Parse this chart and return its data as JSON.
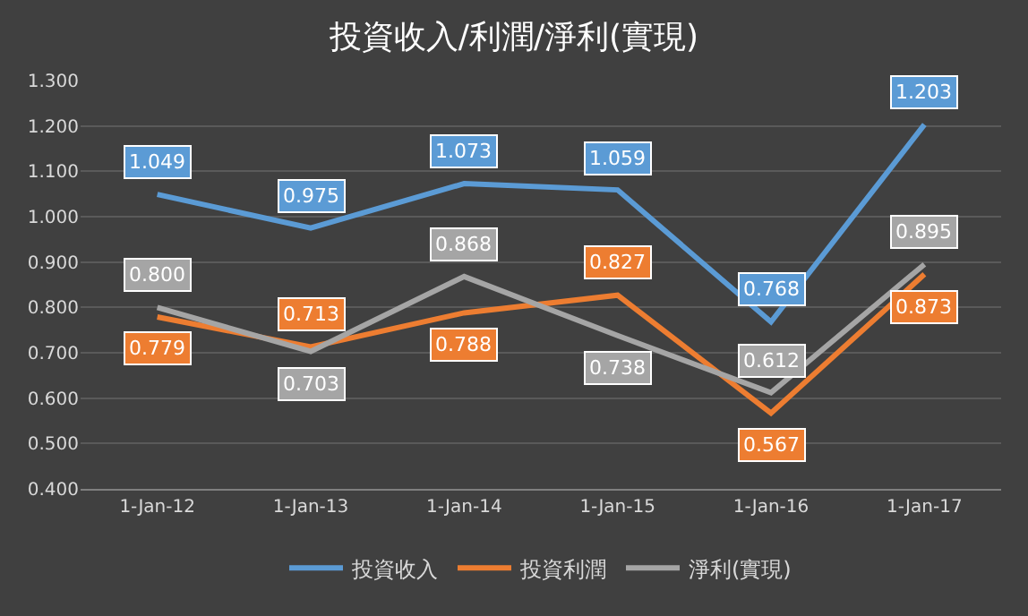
{
  "chart_data": {
    "type": "line",
    "title": "投資收入/利潤/淨利(實現)",
    "categories": [
      "1-Jan-12",
      "1-Jan-13",
      "1-Jan-14",
      "1-Jan-15",
      "1-Jan-16",
      "1-Jan-17"
    ],
    "series": [
      {
        "name": "投資收入",
        "color": "#5b9bd5",
        "values": [
          1.049,
          0.975,
          1.073,
          1.059,
          0.768,
          1.203
        ],
        "value_labels": [
          "1.049",
          "0.975",
          "1.073",
          "1.059",
          "0.768",
          "1.203"
        ]
      },
      {
        "name": "投資利潤",
        "color": "#ed7d31",
        "values": [
          0.779,
          0.713,
          0.788,
          0.827,
          0.567,
          0.873
        ],
        "value_labels": [
          "0.779",
          "0.713",
          "0.788",
          "0.827",
          "0.567",
          "0.873"
        ]
      },
      {
        "name": "淨利(實現)",
        "color": "#a5a5a5",
        "values": [
          0.8,
          0.703,
          0.868,
          0.738,
          0.612,
          0.895
        ],
        "value_labels": [
          "0.800",
          "0.703",
          "0.868",
          "0.738",
          "0.612",
          "0.895"
        ]
      }
    ],
    "ylim": [
      0.4,
      1.3
    ],
    "yticks": [
      {
        "value": 0.4,
        "label": "0.400"
      },
      {
        "value": 0.5,
        "label": "0.500"
      },
      {
        "value": 0.6,
        "label": "0.600"
      },
      {
        "value": 0.7,
        "label": "0.700"
      },
      {
        "value": 0.8,
        "label": "0.800"
      },
      {
        "value": 0.9,
        "label": "0.900"
      },
      {
        "value": 1.0,
        "label": "1.000"
      },
      {
        "value": 1.1,
        "label": "1.100"
      },
      {
        "value": 1.2,
        "label": "1.200"
      },
      {
        "value": 1.3,
        "label": "1.300"
      }
    ],
    "grid": "y",
    "legend": "bottom",
    "marker": "none",
    "line_style": "solid"
  }
}
